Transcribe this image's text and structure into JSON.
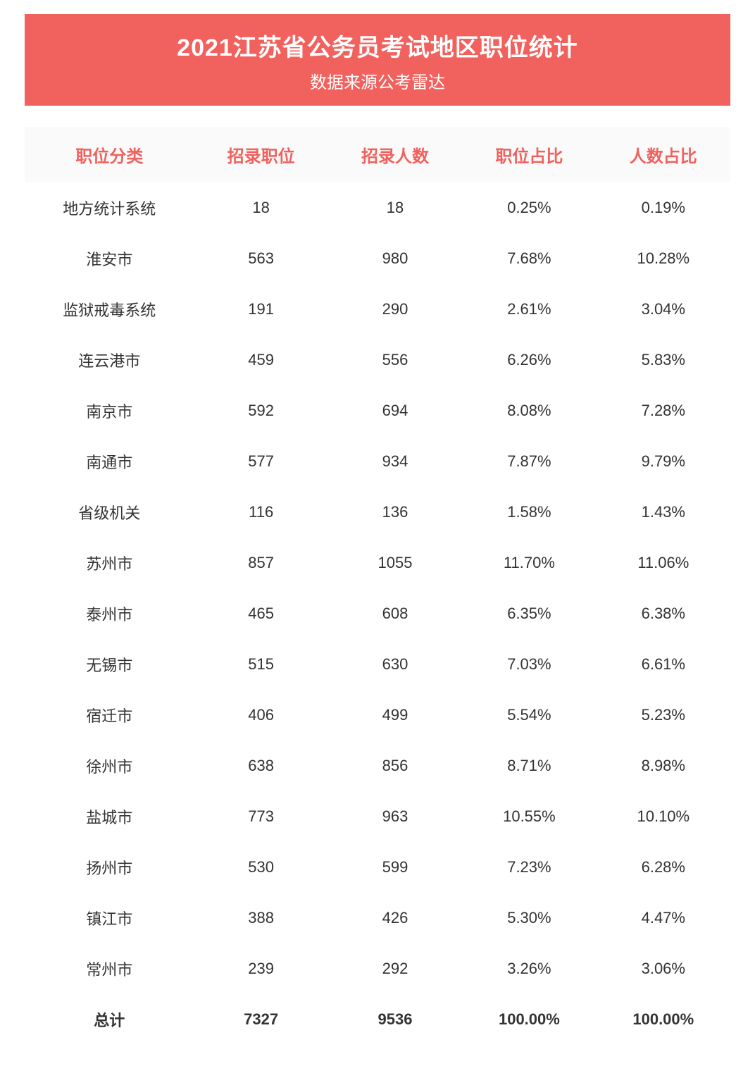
{
  "header": {
    "title": "2021江苏省公务员考试地区职位统计",
    "subtitle": "数据来源公考雷达"
  },
  "table": {
    "columns": [
      "职位分类",
      "招录职位",
      "招录人数",
      "职位占比",
      "人数占比"
    ],
    "rows": [
      [
        "地方统计系统",
        "18",
        "18",
        "0.25%",
        "0.19%"
      ],
      [
        "淮安市",
        "563",
        "980",
        "7.68%",
        "10.28%"
      ],
      [
        "监狱戒毒系统",
        "191",
        "290",
        "2.61%",
        "3.04%"
      ],
      [
        "连云港市",
        "459",
        "556",
        "6.26%",
        "5.83%"
      ],
      [
        "南京市",
        "592",
        "694",
        "8.08%",
        "7.28%"
      ],
      [
        "南通市",
        "577",
        "934",
        "7.87%",
        "9.79%"
      ],
      [
        "省级机关",
        "116",
        "136",
        "1.58%",
        "1.43%"
      ],
      [
        "苏州市",
        "857",
        "1055",
        "11.70%",
        "11.06%"
      ],
      [
        "泰州市",
        "465",
        "608",
        "6.35%",
        "6.38%"
      ],
      [
        "无锡市",
        "515",
        "630",
        "7.03%",
        "6.61%"
      ],
      [
        "宿迁市",
        "406",
        "499",
        "5.54%",
        "5.23%"
      ],
      [
        "徐州市",
        "638",
        "856",
        "8.71%",
        "8.98%"
      ],
      [
        "盐城市",
        "773",
        "963",
        "10.55%",
        "10.10%"
      ],
      [
        "扬州市",
        "530",
        "599",
        "7.23%",
        "6.28%"
      ],
      [
        "镇江市",
        "388",
        "426",
        "5.30%",
        "4.47%"
      ],
      [
        "常州市",
        "239",
        "292",
        "3.26%",
        "3.06%"
      ]
    ],
    "total": [
      "总计",
      "7327",
      "9536",
      "100.00%",
      "100.00%"
    ]
  },
  "style": {
    "header_bg": "#f1615d",
    "header_text": "#ffffff",
    "th_bg": "#fafafa",
    "th_color": "#f1615d",
    "td_color": "#333333",
    "title_fontsize": 34,
    "subtitle_fontsize": 24,
    "th_fontsize": 24,
    "td_fontsize": 22
  }
}
